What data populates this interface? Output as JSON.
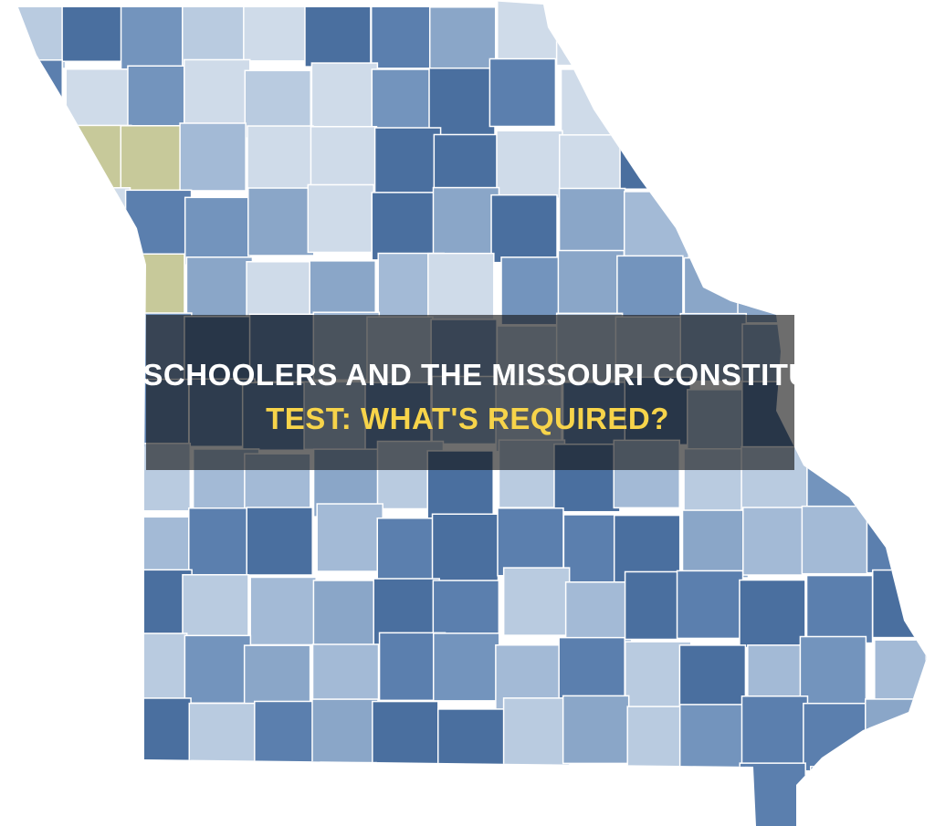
{
  "title": {
    "line1": "HOMESCHOOLERS AND THE MISSOURI CONSTITUTION",
    "line2": "TEST: WHAT'S REQUIRED?"
  }
}
